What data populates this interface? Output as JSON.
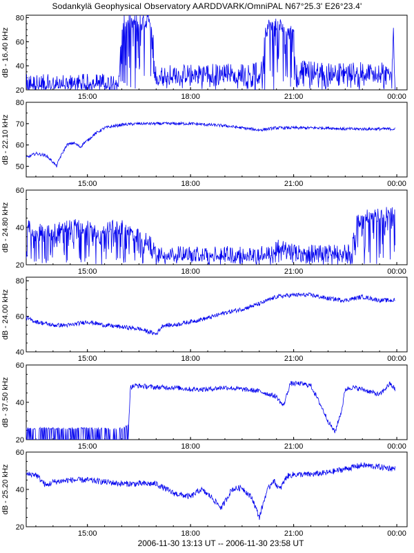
{
  "title": "Sodankylä Geophysical Observatory AARDDVARK/OmniPAL N67°25.3' E26°23.4'",
  "footer": "2006-11-30 13:13 UT -- 2006-11-30 23:58 UT",
  "colors": {
    "trace": "#0000ee",
    "axis": "#000000",
    "background": "#ffffff"
  },
  "chart_data": [
    {
      "type": "line",
      "ylabel": "dB - 16.40 kHz",
      "ylim": [
        20,
        82
      ],
      "yticks": [
        20,
        40,
        60,
        80
      ],
      "xlim_hours": [
        13.22,
        24.3
      ],
      "xticks": [
        {
          "h": 15,
          "label": "15:00"
        },
        {
          "h": 18,
          "label": "18:00"
        },
        {
          "h": 21,
          "label": "21:00"
        },
        {
          "h": 24,
          "label": "00:00"
        }
      ],
      "series": [
        {
          "x_hours": [
            13.22,
            13.5,
            14.0,
            14.5,
            15.0,
            15.5,
            15.9,
            15.95,
            16.0,
            16.1,
            16.3,
            16.5,
            16.8,
            16.9,
            16.95,
            17.0,
            17.5,
            18.0,
            18.5,
            19.0,
            19.5,
            20.0,
            20.1,
            20.15,
            20.2,
            20.4,
            20.6,
            20.7,
            20.75,
            20.8,
            20.9,
            21.0,
            21.05,
            21.1,
            21.5,
            22.0,
            22.5,
            23.0,
            23.5,
            23.85,
            23.9,
            23.95
          ],
          "values": [
            25,
            25,
            25,
            25.5,
            25.5,
            26,
            27,
            44,
            71,
            75,
            75,
            75.5,
            76,
            76,
            34,
            32,
            33,
            33.5,
            34,
            34.5,
            34.5,
            35,
            36,
            62,
            72,
            72,
            72,
            72,
            60,
            72,
            75,
            77,
            36,
            37,
            36,
            35,
            35,
            35,
            35,
            35,
            69,
            20
          ],
          "noise": 8,
          "spikes_down": true
        }
      ]
    },
    {
      "type": "line",
      "ylabel": "dB - 22.10 kHz",
      "ylim": [
        45,
        80
      ],
      "yticks": [
        50,
        60,
        70,
        80
      ],
      "xlim_hours": [
        13.22,
        24.3
      ],
      "xticks": [
        {
          "h": 15,
          "label": "15:00"
        },
        {
          "h": 18,
          "label": "18:00"
        },
        {
          "h": 21,
          "label": "21:00"
        },
        {
          "h": 24,
          "label": "00:00"
        }
      ],
      "series": [
        {
          "x_hours": [
            13.22,
            13.5,
            13.8,
            14.0,
            14.1,
            14.2,
            14.4,
            14.6,
            14.8,
            14.9,
            15.0,
            15.2,
            15.5,
            16.0,
            16.5,
            17.0,
            17.5,
            18.0,
            18.5,
            19.0,
            19.5,
            20.0,
            20.5,
            21.0,
            21.5,
            22.0,
            22.5,
            23.0,
            23.5,
            23.95
          ],
          "values": [
            54,
            56,
            55,
            52,
            50,
            54,
            60,
            61,
            59,
            61,
            62,
            65,
            68,
            69.5,
            70,
            70,
            70,
            70,
            69.5,
            69,
            68,
            67,
            68,
            68,
            68,
            68,
            67.5,
            67.5,
            67.5,
            67.5
          ],
          "noise": 0.7
        }
      ]
    },
    {
      "type": "line",
      "ylabel": "dB - 24.80 kHz",
      "ylim": [
        20,
        60
      ],
      "yticks": [
        20,
        40,
        60
      ],
      "xlim_hours": [
        13.22,
        24.3
      ],
      "xticks": [
        {
          "h": 15,
          "label": "15:00"
        },
        {
          "h": 18,
          "label": "18:00"
        },
        {
          "h": 21,
          "label": "21:00"
        },
        {
          "h": 24,
          "label": "00:00"
        }
      ],
      "series": [
        {
          "x_hours": [
            13.22,
            13.26,
            13.3,
            13.6,
            14.0,
            14.5,
            15.0,
            15.4,
            15.6,
            16.0,
            16.5,
            16.8,
            17.0,
            17.2,
            17.4,
            17.6,
            18.0,
            18.5,
            19.0,
            19.5,
            20.0,
            20.3,
            20.5,
            21.0,
            21.5,
            22.0,
            22.5,
            22.7,
            22.8,
            23.0,
            23.5,
            23.95
          ],
          "values": [
            20,
            42,
            40,
            38,
            38,
            41,
            40,
            35,
            40,
            40,
            35,
            33,
            27,
            27,
            26,
            26,
            26,
            26,
            26,
            26,
            26,
            27,
            30,
            27,
            27,
            27,
            27,
            28,
            42,
            45,
            47,
            47
          ],
          "noise": 4,
          "spikes_down": true
        }
      ]
    },
    {
      "type": "line",
      "ylabel": "dB - 24.00 kHz",
      "ylim": [
        40,
        82
      ],
      "yticks": [
        40,
        60,
        80
      ],
      "xlim_hours": [
        13.22,
        24.3
      ],
      "xticks": [
        {
          "h": 15,
          "label": "15:00"
        },
        {
          "h": 18,
          "label": "18:00"
        },
        {
          "h": 21,
          "label": "21:00"
        },
        {
          "h": 24,
          "label": "00:00"
        }
      ],
      "series": [
        {
          "x_hours": [
            13.22,
            13.5,
            14.0,
            14.5,
            15.0,
            15.5,
            16.0,
            16.5,
            17.0,
            17.2,
            17.5,
            18.0,
            18.5,
            19.0,
            19.5,
            20.0,
            20.5,
            21.0,
            21.5,
            22.0,
            22.5,
            23.0,
            23.5,
            23.95
          ],
          "values": [
            59,
            57,
            55,
            55,
            57,
            55,
            54,
            53,
            50,
            55,
            55,
            57,
            59,
            62,
            64,
            67,
            71,
            72,
            72,
            70,
            69,
            71,
            69,
            69
          ],
          "noise": 1.2
        }
      ]
    },
    {
      "type": "line",
      "ylabel": "dB - 37.50 kHz",
      "ylim": [
        20,
        60
      ],
      "yticks": [
        20,
        40,
        60
      ],
      "xlim_hours": [
        13.22,
        24.3
      ],
      "xticks": [
        {
          "h": 15,
          "label": "15:00"
        },
        {
          "h": 18,
          "label": "18:00"
        },
        {
          "h": 21,
          "label": "21:00"
        },
        {
          "h": 24,
          "label": "00:00"
        }
      ],
      "series": [
        {
          "x_hours": [
            13.22,
            14.0,
            15.0,
            16.0,
            16.2,
            16.25,
            16.4,
            17.0,
            17.5,
            18.0,
            18.5,
            19.0,
            19.5,
            20.0,
            20.5,
            20.7,
            20.9,
            21.2,
            21.5,
            21.8,
            22.0,
            22.2,
            22.4,
            22.5,
            22.7,
            23.0,
            23.5,
            23.8,
            23.95
          ],
          "values": [
            26,
            26,
            26,
            26,
            28,
            48,
            49,
            48,
            48,
            47,
            47,
            48,
            47,
            46,
            43,
            38,
            50,
            50,
            49,
            38,
            30,
            24,
            36,
            47,
            48,
            47,
            44,
            50,
            47
          ],
          "noise": 1.3,
          "comb_until_hour": 16.2
        }
      ]
    },
    {
      "type": "line",
      "ylabel": "dB - 25.20 kHz",
      "ylim": [
        20,
        60
      ],
      "yticks": [
        20,
        40,
        60
      ],
      "xlim_hours": [
        13.22,
        24.3
      ],
      "xticks": [
        {
          "h": 15,
          "label": "15:00"
        },
        {
          "h": 18,
          "label": "18:00"
        },
        {
          "h": 21,
          "label": "21:00"
        },
        {
          "h": 24,
          "label": "00:00"
        }
      ],
      "series": [
        {
          "x_hours": [
            13.22,
            13.5,
            13.8,
            14.0,
            14.5,
            15.0,
            15.5,
            16.0,
            16.5,
            17.0,
            17.5,
            18.0,
            18.3,
            18.6,
            18.9,
            19.2,
            19.5,
            19.8,
            20.0,
            20.2,
            20.4,
            20.6,
            20.8,
            21.0,
            21.5,
            22.0,
            22.5,
            23.0,
            23.5,
            23.95
          ],
          "values": [
            48,
            48,
            42,
            44,
            45,
            45,
            44,
            43,
            43,
            43,
            38,
            36,
            40,
            36,
            30,
            40,
            41,
            35,
            25,
            38,
            45,
            40,
            47,
            48,
            48,
            49,
            51,
            53,
            52,
            51
          ],
          "noise": 1.6
        }
      ]
    }
  ]
}
